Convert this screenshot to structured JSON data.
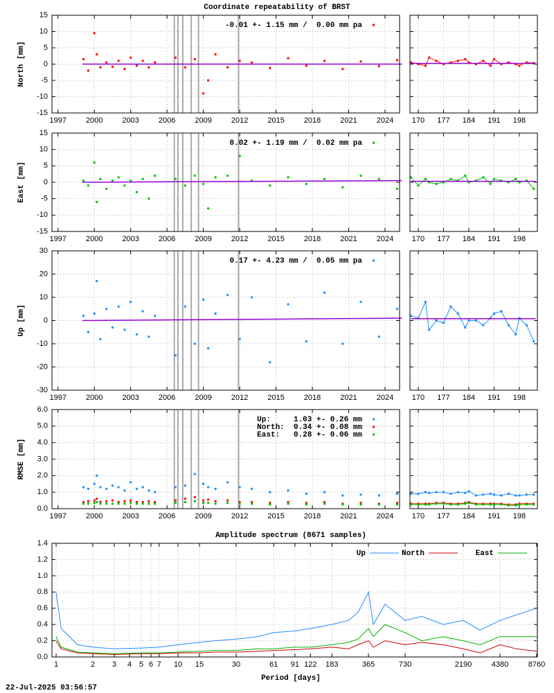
{
  "timestamp": "22-Jul-2025 03:56:57",
  "chart_data": [
    {
      "type": "scatter",
      "title": "Coordinate repeatability of BRST",
      "ylabel": "North [mm]",
      "xlim": [
        1996.5,
        2025.2
      ],
      "xticks": [
        1997,
        2000,
        2003,
        2006,
        2009,
        2012,
        2015,
        2018,
        2021,
        2024
      ],
      "ylim": [
        -15,
        15
      ],
      "yticks": [
        -15,
        -10,
        -5,
        0,
        5,
        10,
        15
      ],
      "grid": true,
      "events": [
        2006.6,
        2006.9,
        2007.3,
        2008.0,
        2008.6,
        2011.9
      ],
      "x": [
        1999.1,
        1999.5,
        2000.0,
        2000.2,
        2000.5,
        2001.0,
        2001.5,
        2002.0,
        2002.5,
        2003.0,
        2003.5,
        2004.0,
        2004.5,
        2005.0,
        2006.7,
        2007.5,
        2008.3,
        2009.0,
        2009.4,
        2010.0,
        2011.0,
        2012.0,
        2013.0,
        2014.5,
        2016.0,
        2017.5,
        2019.0,
        2020.5,
        2022.0,
        2023.5,
        2025.0
      ],
      "series": [
        {
          "name": "-0.01 +- 1.15 mm /  0.00 mm pa",
          "color": "#ff0000",
          "values": [
            1.5,
            -2,
            9.5,
            3,
            -1,
            0.5,
            -0.8,
            1,
            -1.5,
            2,
            -0.5,
            1,
            -1,
            0.5,
            2,
            -1,
            1.5,
            -9,
            -5,
            3,
            -1,
            1,
            0.5,
            -1.2,
            1.8,
            -0.5,
            1,
            -1.5,
            0.8,
            -0.6,
            1.2
          ]
        }
      ],
      "trend": {
        "color": "#9400d3",
        "x": [
          1999.0,
          2025.4
        ],
        "values": [
          0,
          0
        ]
      }
    },
    {
      "type": "scatter",
      "lines": true,
      "xlim": [
        167.7,
        203
      ],
      "xticks": [
        170,
        177,
        184,
        191,
        198
      ],
      "ylim": [
        -15,
        15
      ],
      "yticks": [
        -15,
        -10,
        -5,
        0,
        5,
        10,
        15
      ],
      "grid": true,
      "x": [
        168,
        170,
        172,
        173,
        175,
        177,
        179,
        181,
        183,
        184,
        186,
        188,
        190,
        191,
        193,
        195,
        197,
        198,
        200,
        202
      ],
      "series": [
        {
          "color": "#ff0000",
          "values": [
            0.5,
            0,
            -0.5,
            2,
            1,
            0,
            0.5,
            1,
            1.5,
            0.5,
            0,
            1,
            -0.5,
            1.5,
            0,
            0.5,
            0,
            -0.5,
            0.5,
            0.3
          ]
        }
      ],
      "trend": {
        "color": "#9400d3",
        "x": [
          168,
          202.5
        ],
        "values": [
          0.2,
          0.2
        ]
      }
    },
    {
      "type": "scatter",
      "ylabel": "East [mm]",
      "xlim": [
        1996.5,
        2025.2
      ],
      "xticks": [
        1997,
        2000,
        2003,
        2006,
        2009,
        2012,
        2015,
        2018,
        2021,
        2024
      ],
      "ylim": [
        -15,
        15
      ],
      "yticks": [
        -15,
        -10,
        -5,
        0,
        5,
        10,
        15
      ],
      "grid": true,
      "events": [
        2006.6,
        2006.9,
        2007.3,
        2008.0,
        2008.6,
        2011.9
      ],
      "x": [
        1999.1,
        1999.5,
        2000.0,
        2000.2,
        2000.5,
        2001.0,
        2001.5,
        2002.0,
        2002.5,
        2003.0,
        2003.5,
        2004.0,
        2004.5,
        2005.0,
        2006.7,
        2007.5,
        2008.3,
        2009.0,
        2009.4,
        2010.0,
        2011.0,
        2012.0,
        2013.0,
        2014.5,
        2016.0,
        2017.5,
        2019.0,
        2020.5,
        2022.0,
        2023.5,
        2025.0
      ],
      "series": [
        {
          "name": " 0.02 +- 1.19 mm /  0.02 mm pa",
          "color": "#00c000",
          "values": [
            0.5,
            -1,
            6,
            -6,
            1,
            -2,
            0.5,
            1.5,
            -1,
            0.5,
            -3,
            1,
            -5,
            2,
            1,
            -1,
            2,
            -0.5,
            -8,
            1.5,
            2,
            8,
            0.5,
            -1,
            1.5,
            -0.5,
            1,
            -1.5,
            2,
            1,
            -2
          ]
        }
      ],
      "trend": {
        "color": "#9400d3",
        "x": [
          1999.0,
          2025.4
        ],
        "values": [
          0,
          0.5
        ]
      }
    },
    {
      "type": "scatter",
      "lines": true,
      "xlim": [
        167.7,
        203
      ],
      "xticks": [
        170,
        177,
        184,
        191,
        198
      ],
      "ylim": [
        -15,
        15
      ],
      "yticks": [
        -15,
        -10,
        -5,
        0,
        5,
        10,
        15
      ],
      "grid": true,
      "x": [
        168,
        170,
        172,
        173,
        175,
        177,
        179,
        181,
        183,
        184,
        186,
        188,
        190,
        191,
        193,
        195,
        197,
        198,
        200,
        202
      ],
      "series": [
        {
          "color": "#00c000",
          "values": [
            1.5,
            -1,
            1,
            0,
            -0.5,
            0,
            1,
            0.5,
            2,
            0,
            0.5,
            1.5,
            -0.5,
            1,
            0.5,
            0,
            1,
            0,
            0.5,
            -2
          ]
        }
      ],
      "trend": {
        "color": "#9400d3",
        "x": [
          168,
          202.5
        ],
        "values": [
          0.3,
          0.3
        ]
      }
    },
    {
      "type": "scatter",
      "ylabel": "Up [mm]",
      "xlim": [
        1996.5,
        2025.2
      ],
      "xticks": [
        1997,
        2000,
        2003,
        2006,
        2009,
        2012,
        2015,
        2018,
        2021,
        2024
      ],
      "ylim": [
        -30,
        30
      ],
      "yticks": [
        -30,
        -20,
        -10,
        0,
        10,
        20,
        30
      ],
      "grid": true,
      "events": [
        2006.6,
        2006.9,
        2007.3,
        2008.0,
        2008.6,
        2011.9
      ],
      "x": [
        1999.1,
        1999.5,
        2000.0,
        2000.2,
        2000.5,
        2001.0,
        2001.5,
        2002.0,
        2002.5,
        2003.0,
        2003.5,
        2004.0,
        2004.5,
        2005.0,
        2006.7,
        2007.5,
        2008.3,
        2009.0,
        2009.4,
        2010.0,
        2011.0,
        2012.0,
        2013.0,
        2014.5,
        2016.0,
        2017.5,
        2019.0,
        2020.5,
        2022.0,
        2023.5,
        2025.0
      ],
      "series": [
        {
          "name": " 0.17 +- 4.23 mm /  0.05 mm pa",
          "color": "#1e8cff",
          "values": [
            2,
            -5,
            3,
            17,
            -8,
            5,
            -3,
            6,
            -4,
            8,
            -6,
            4,
            -7,
            2,
            -15,
            6,
            -10,
            9,
            -12,
            3,
            11,
            -8,
            10,
            -18,
            7,
            -9,
            12,
            -10,
            8,
            -7,
            5
          ]
        }
      ],
      "trend": {
        "color": "#9400d3",
        "x": [
          1999.0,
          2025.4
        ],
        "values": [
          0,
          1
        ]
      }
    },
    {
      "type": "scatter",
      "lines": true,
      "xlim": [
        167.7,
        203
      ],
      "xticks": [
        170,
        177,
        184,
        191,
        198
      ],
      "ylim": [
        -30,
        30
      ],
      "yticks": [
        -30,
        -20,
        -10,
        0,
        10,
        20,
        30
      ],
      "grid": true,
      "x": [
        168,
        170,
        172,
        173,
        175,
        177,
        179,
        181,
        183,
        184,
        186,
        188,
        190,
        191,
        193,
        195,
        197,
        198,
        200,
        202
      ],
      "series": [
        {
          "color": "#1e8cff",
          "values": [
            2,
            1,
            8,
            -4,
            0,
            -1,
            6,
            3,
            -3,
            0,
            0,
            -2,
            1,
            3,
            4,
            -2,
            -6,
            1,
            -2,
            -9
          ]
        }
      ],
      "trend": {
        "color": "#9400d3",
        "x": [
          168,
          202.5
        ],
        "values": [
          0.8,
          0.8
        ]
      }
    },
    {
      "type": "scatter",
      "ylabel": "RMSE [mm]",
      "xlim": [
        1996.5,
        2025.2
      ],
      "xticks": [
        1997,
        2000,
        2003,
        2006,
        2009,
        2012,
        2015,
        2018,
        2021,
        2024
      ],
      "ylim": [
        0,
        6
      ],
      "yticks": [
        {
          "value": 0,
          "label": "0.0"
        },
        {
          "value": 1,
          "label": "1.0"
        },
        {
          "value": 2,
          "label": "2.0"
        },
        {
          "value": 3,
          "label": "3.0"
        },
        {
          "value": 4,
          "label": "4.0"
        },
        {
          "value": 5,
          "label": "5.0"
        },
        {
          "value": 6,
          "label": "6.0"
        }
      ],
      "grid": true,
      "events": [
        2006.6,
        2006.9,
        2007.3,
        2008.0,
        2008.6,
        2011.9
      ],
      "x": [
        1999.1,
        1999.5,
        2000.0,
        2000.2,
        2000.5,
        2001.0,
        2001.5,
        2002.0,
        2002.5,
        2003.0,
        2003.5,
        2004.0,
        2004.5,
        2005.0,
        2006.7,
        2007.5,
        2008.3,
        2009.0,
        2009.4,
        2010.0,
        2011.0,
        2012.0,
        2013.0,
        2014.5,
        2016.0,
        2017.5,
        2019.0,
        2020.5,
        2022.0,
        2023.5,
        2025.0
      ],
      "series": [
        {
          "name": "Up:     1.03 +- 0.26 mm",
          "color": "#1e8cff",
          "values": [
            1.3,
            1.2,
            1.5,
            2.0,
            1.3,
            1.2,
            1.4,
            1.3,
            1.1,
            1.6,
            1.2,
            1.3,
            1.1,
            1.0,
            1.3,
            1.4,
            2.1,
            1.5,
            1.3,
            1.2,
            1.6,
            1.3,
            1.2,
            1.0,
            1.1,
            0.9,
            1.0,
            0.8,
            0.85,
            0.8,
            0.9
          ]
        },
        {
          "name": "North:  0.34 +- 0.08 mm",
          "color": "#ff0000",
          "values": [
            0.4,
            0.45,
            0.5,
            0.6,
            0.4,
            0.45,
            0.5,
            0.4,
            0.45,
            0.5,
            0.4,
            0.4,
            0.45,
            0.4,
            0.5,
            0.6,
            0.7,
            0.5,
            0.55,
            0.45,
            0.5,
            0.4,
            0.4,
            0.35,
            0.4,
            0.35,
            0.4,
            0.3,
            0.35,
            0.3,
            0.35
          ]
        },
        {
          "name": "East:   0.28 +- 0.06 mm",
          "color": "#00c000",
          "values": [
            0.3,
            0.3,
            0.35,
            0.4,
            0.3,
            0.3,
            0.3,
            0.3,
            0.3,
            0.35,
            0.3,
            0.3,
            0.3,
            0.3,
            0.35,
            0.4,
            0.45,
            0.35,
            0.35,
            0.3,
            0.35,
            0.3,
            0.3,
            0.25,
            0.3,
            0.25,
            0.3,
            0.25,
            0.25,
            0.25,
            0.25
          ]
        }
      ]
    },
    {
      "type": "scatter",
      "lines": true,
      "xlim": [
        167.7,
        203
      ],
      "xticks": [
        170,
        177,
        184,
        191,
        198
      ],
      "ylim": [
        0,
        6
      ],
      "yticks": [
        0,
        1,
        2,
        3,
        4,
        5,
        6
      ],
      "grid": true,
      "x": [
        168,
        170,
        172,
        173,
        175,
        177,
        179,
        181,
        183,
        184,
        186,
        188,
        190,
        191,
        193,
        195,
        197,
        198,
        200,
        202
      ],
      "series": [
        {
          "color": "#1e8cff",
          "values": [
            0.9,
            0.9,
            1.0,
            0.95,
            1.0,
            1.0,
            0.9,
            1.0,
            0.95,
            1.05,
            0.8,
            0.85,
            0.9,
            0.85,
            0.8,
            0.9,
            0.8,
            0.8,
            0.85,
            0.85
          ]
        },
        {
          "color": "#ff0000",
          "values": [
            0.3,
            0.3,
            0.3,
            0.3,
            0.35,
            0.35,
            0.3,
            0.3,
            0.35,
            0.4,
            0.3,
            0.3,
            0.3,
            0.3,
            0.3,
            0.25,
            0.25,
            0.3,
            0.3,
            0.3
          ]
        },
        {
          "color": "#00c000",
          "values": [
            0.25,
            0.25,
            0.25,
            0.25,
            0.3,
            0.3,
            0.25,
            0.25,
            0.3,
            0.35,
            0.25,
            0.25,
            0.25,
            0.25,
            0.25,
            0.2,
            0.2,
            0.25,
            0.25,
            0.25
          ]
        }
      ]
    },
    {
      "type": "line",
      "title": "Amplitude spectrum (8671 samples)",
      "xlabel": "Period [days]",
      "xlog": true,
      "xlim": [
        0.924,
        8875
      ],
      "xticks": [
        1,
        2,
        3,
        4,
        5,
        6,
        7,
        10,
        15,
        30,
        61,
        91,
        122,
        183,
        365,
        730,
        2190,
        4380,
        8760
      ],
      "ylim": [
        0,
        1.4
      ],
      "yticks": [
        {
          "value": 0,
          "label": "0.0"
        },
        0.2,
        0.4,
        0.6,
        0.8,
        {
          "value": 1,
          "label": "1.0"
        },
        1.2,
        1.4
      ],
      "grid": true,
      "x": [
        1,
        1.1,
        1.5,
        2,
        3,
        5,
        7,
        10,
        15,
        20,
        30,
        45,
        61,
        91,
        122,
        183,
        250,
        300,
        365,
        400,
        500,
        730,
        1000,
        1500,
        2190,
        3000,
        4380,
        6000,
        8760
      ],
      "series": [
        {
          "name": "Up",
          "color": "#1e8cff",
          "values": [
            0.8,
            0.35,
            0.15,
            0.12,
            0.1,
            0.11,
            0.12,
            0.15,
            0.18,
            0.2,
            0.22,
            0.25,
            0.3,
            0.32,
            0.35,
            0.4,
            0.45,
            0.55,
            0.8,
            0.4,
            0.65,
            0.45,
            0.5,
            0.4,
            0.45,
            0.33,
            0.45,
            0.52,
            0.6
          ]
        },
        {
          "name": "North",
          "color": "#cc0000",
          "values": [
            0.2,
            0.1,
            0.05,
            0.04,
            0.03,
            0.04,
            0.04,
            0.05,
            0.05,
            0.06,
            0.06,
            0.07,
            0.08,
            0.09,
            0.1,
            0.12,
            0.1,
            0.15,
            0.2,
            0.12,
            0.2,
            0.15,
            0.18,
            0.15,
            0.1,
            0.05,
            0.15,
            0.1,
            0.07
          ]
        },
        {
          "name": "East",
          "color": "#00b000",
          "values": [
            0.25,
            0.12,
            0.06,
            0.05,
            0.04,
            0.05,
            0.05,
            0.06,
            0.07,
            0.08,
            0.08,
            0.1,
            0.1,
            0.12,
            0.12,
            0.15,
            0.18,
            0.22,
            0.35,
            0.25,
            0.4,
            0.3,
            0.2,
            0.25,
            0.2,
            0.15,
            0.25,
            0.25,
            0.25
          ]
        }
      ]
    }
  ]
}
